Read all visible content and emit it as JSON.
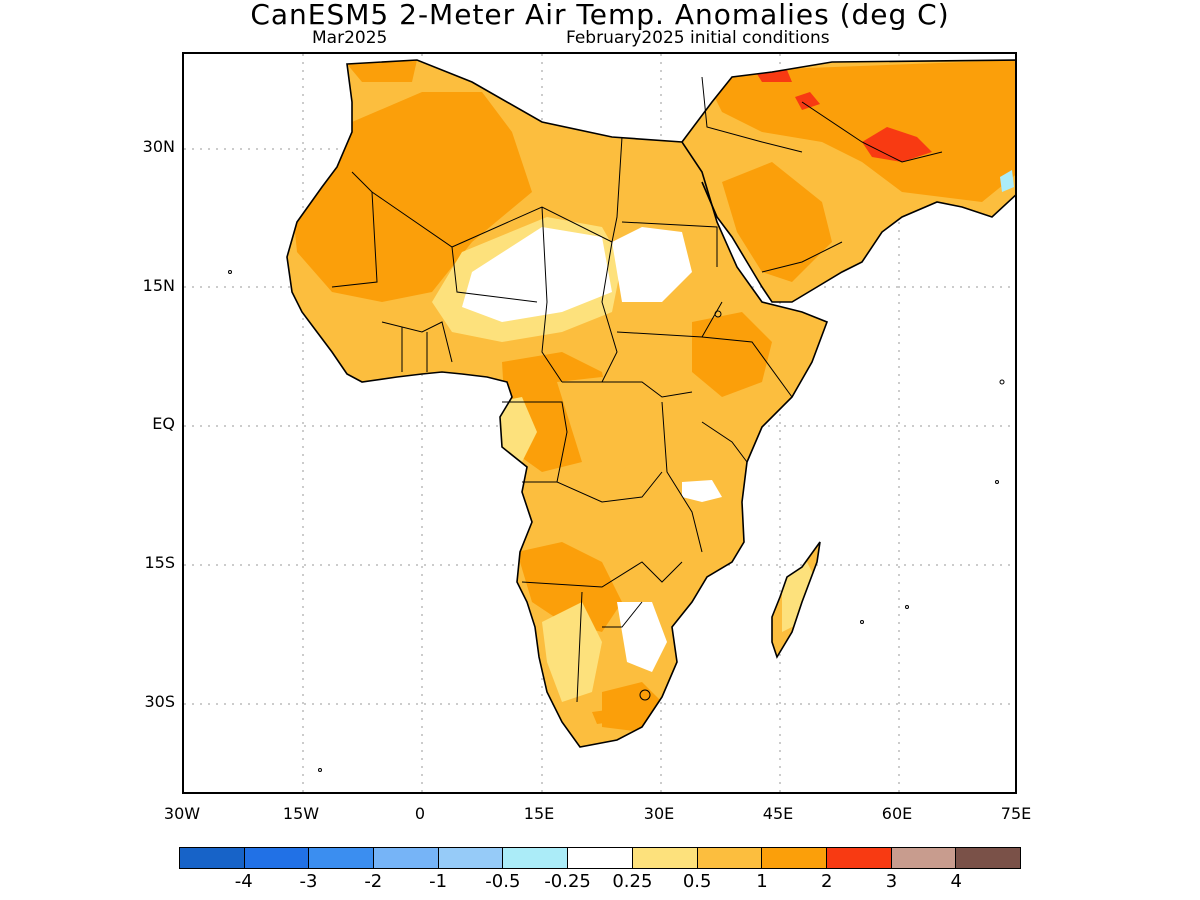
{
  "title": "CanESM5 2-Meter Air Temp. Anomalies (deg C)",
  "subtitle_left": "Mar2025",
  "subtitle_right": "February2025 initial conditions",
  "map": {
    "lat_ticks": [
      "30N",
      "15N",
      "EQ",
      "15S",
      "30S"
    ],
    "lon_ticks": [
      "30W",
      "15W",
      "0",
      "15E",
      "30E",
      "45E",
      "60E",
      "75E"
    ],
    "grid": "dotted",
    "land_colors": {
      "lt_0.25": "#ffffff",
      "0.25_0.5": "#fde17c",
      "0.5_1": "#fcbe3e",
      "1_2": "#fb9f0a",
      "2_3": "#f83a12",
      "cold": "#abecf8"
    }
  },
  "legend": {
    "colors": [
      "#1763c8",
      "#2171e6",
      "#3b8ef0",
      "#76b4f7",
      "#96cbf8",
      "#abecf8",
      "#ffffff",
      "#fde17c",
      "#fcbe3e",
      "#fb9f0a",
      "#f83a12",
      "#c89c8e",
      "#7a5148"
    ],
    "labels": [
      "-4",
      "-3",
      "-2",
      "-1",
      "-0.5",
      "-0.25",
      "0.25",
      "0.5",
      "1",
      "2",
      "3",
      "4"
    ]
  }
}
